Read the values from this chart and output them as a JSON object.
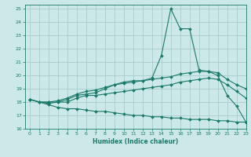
{
  "xlabel": "Humidex (Indice chaleur)",
  "bg_color": "#cce8e8",
  "grid_color": "#aacccc",
  "line_color": "#1a7a6a",
  "xlim": [
    -0.5,
    23
  ],
  "ylim": [
    16,
    25.3
  ],
  "yticks": [
    16,
    17,
    18,
    19,
    20,
    21,
    22,
    23,
    24,
    25
  ],
  "xticks": [
    0,
    1,
    2,
    3,
    4,
    5,
    6,
    7,
    8,
    9,
    10,
    11,
    12,
    13,
    14,
    15,
    16,
    17,
    18,
    19,
    20,
    21,
    22,
    23
  ],
  "line1_x": [
    0,
    1,
    2,
    3,
    4,
    5,
    6,
    7,
    8,
    9,
    10,
    11,
    12,
    13,
    14,
    15,
    16,
    17,
    18,
    19,
    20,
    21,
    22,
    23
  ],
  "line1_y": [
    18.2,
    18.0,
    18.0,
    18.0,
    18.2,
    18.5,
    18.6,
    18.7,
    19.0,
    19.3,
    19.5,
    19.6,
    19.6,
    19.8,
    21.5,
    25.0,
    23.5,
    23.5,
    20.4,
    20.3,
    20.0,
    18.5,
    17.7,
    16.5
  ],
  "line2_x": [
    0,
    1,
    2,
    3,
    4,
    5,
    6,
    7,
    8,
    9,
    10,
    11,
    12,
    13,
    14,
    15,
    16,
    17,
    18,
    19,
    20,
    21,
    22,
    23
  ],
  "line2_y": [
    18.2,
    18.0,
    18.0,
    18.1,
    18.3,
    18.6,
    18.8,
    18.9,
    19.1,
    19.3,
    19.4,
    19.5,
    19.6,
    19.7,
    19.8,
    19.9,
    20.1,
    20.2,
    20.3,
    20.3,
    20.2,
    19.7,
    19.3,
    19.0
  ],
  "line3_x": [
    0,
    1,
    2,
    3,
    4,
    5,
    6,
    7,
    8,
    9,
    10,
    11,
    12,
    13,
    14,
    15,
    16,
    17,
    18,
    19,
    20,
    21,
    22,
    23
  ],
  "line3_y": [
    18.2,
    18.0,
    17.9,
    18.0,
    18.0,
    18.3,
    18.5,
    18.5,
    18.6,
    18.7,
    18.8,
    18.9,
    19.0,
    19.1,
    19.2,
    19.3,
    19.5,
    19.6,
    19.7,
    19.8,
    19.7,
    19.3,
    18.8,
    18.3
  ],
  "line4_x": [
    0,
    1,
    2,
    3,
    4,
    5,
    6,
    7,
    8,
    9,
    10,
    11,
    12,
    13,
    14,
    15,
    16,
    17,
    18,
    19,
    20,
    21,
    22,
    23
  ],
  "line4_y": [
    18.2,
    18.0,
    17.8,
    17.6,
    17.5,
    17.5,
    17.4,
    17.3,
    17.3,
    17.2,
    17.1,
    17.0,
    17.0,
    16.9,
    16.9,
    16.8,
    16.8,
    16.7,
    16.7,
    16.7,
    16.6,
    16.6,
    16.5,
    16.5
  ]
}
